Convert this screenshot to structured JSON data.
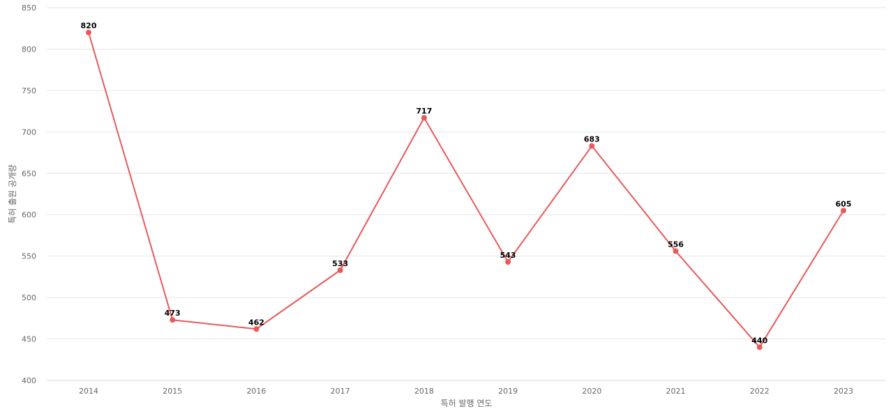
{
  "chart_data": {
    "type": "line",
    "categories": [
      "2014",
      "2015",
      "2016",
      "2017",
      "2018",
      "2019",
      "2020",
      "2021",
      "2022",
      "2023"
    ],
    "series": [
      {
        "values": [
          820,
          473,
          462,
          533,
          717,
          543,
          683,
          556,
          440,
          605
        ]
      }
    ],
    "xlabel": "특허 발행 연도",
    "ylabel": "특허 출원 공개량",
    "ylim": [
      400,
      850
    ],
    "yticks": [
      400,
      450,
      500,
      550,
      600,
      650,
      700,
      750,
      800,
      850
    ],
    "grid": true,
    "data_labels": true,
    "colors": {
      "line": "#e8595a",
      "marker": "#e8595a",
      "grid": "#e6e6e6"
    }
  }
}
